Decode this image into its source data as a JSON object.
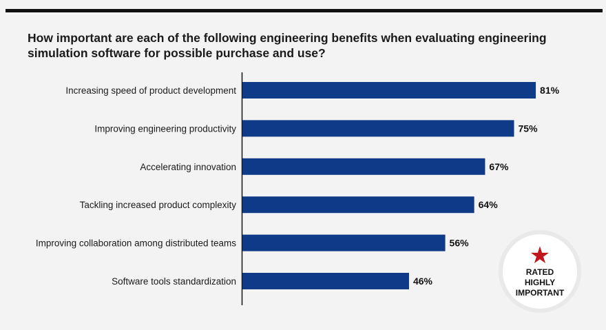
{
  "chart_data": {
    "type": "bar",
    "orientation": "horizontal",
    "title": "How important are each of the following engineering benefits when evaluating engineering simulation software for possible purchase and use?",
    "categories": [
      "Increasing speed of product development",
      "Improving engineering productivity",
      "Accelerating innovation",
      "Tackling increased product complexity",
      "Improving collaboration among distributed teams",
      "Software tools standardization"
    ],
    "values": [
      81,
      75,
      67,
      64,
      56,
      46
    ],
    "value_labels": [
      "81%",
      "75%",
      "67%",
      "64%",
      "56%",
      "46%"
    ],
    "xlim": [
      0,
      100
    ],
    "grid": false,
    "bar_color": "#0f3a87"
  },
  "badge": {
    "icon": "star-icon",
    "icon_color": "#c0161c",
    "text": "RATED HIGHLY IMPORTANT"
  }
}
